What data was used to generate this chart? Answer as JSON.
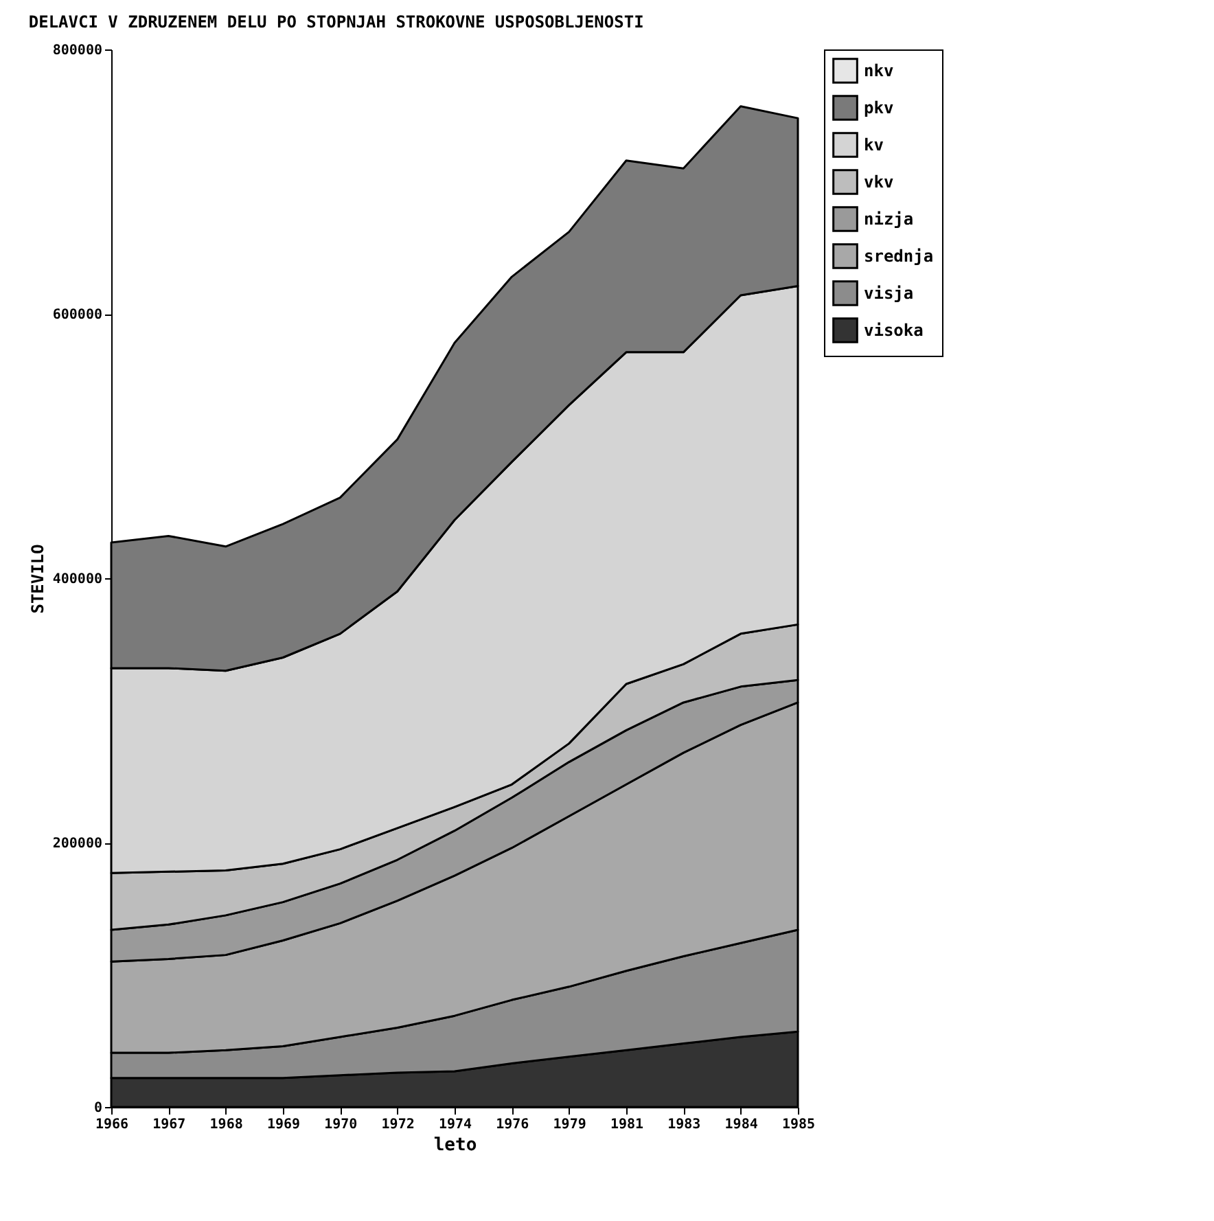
{
  "chart_data": {
    "type": "area",
    "stacked": true,
    "title": "DELAVCI V ZDRUZENEM DELU PO STOPNJAH STROKOVNE USPOSOBLJENOSTI",
    "xlabel": "leto",
    "ylabel": "STEVILO",
    "categories": [
      "1966",
      "1967",
      "1968",
      "1969",
      "1970",
      "1972",
      "1974",
      "1976",
      "1979",
      "1981",
      "1983",
      "1984",
      "1985"
    ],
    "series": [
      {
        "name": "visoka",
        "color": "#333333",
        "values": [
          22000,
          22000,
          22000,
          22000,
          24000,
          26000,
          27000,
          33000,
          38000,
          43000,
          48000,
          53000,
          57000
        ]
      },
      {
        "name": "visja",
        "color": "#8c8c8c",
        "values": [
          19000,
          19000,
          21000,
          24000,
          29000,
          34000,
          42000,
          48000,
          53000,
          60000,
          66000,
          71000,
          77000
        ]
      },
      {
        "name": "srednja",
        "color": "#a8a8a8",
        "values": [
          69000,
          71000,
          72000,
          80000,
          86000,
          96000,
          106000,
          115000,
          129000,
          141000,
          154000,
          165000,
          172000
        ]
      },
      {
        "name": "nizja",
        "color": "#9a9a9a",
        "values": [
          24000,
          26000,
          30000,
          29000,
          30000,
          31000,
          34000,
          38000,
          41000,
          41000,
          38000,
          29000,
          17000
        ]
      },
      {
        "name": "vkv",
        "color": "#bdbdbd",
        "values": [
          43000,
          40000,
          34000,
          29000,
          26000,
          24000,
          18000,
          10000,
          14000,
          35000,
          29000,
          40000,
          42000
        ]
      },
      {
        "name": "kv",
        "color": "#d4d4d4",
        "values": [
          155000,
          154000,
          151000,
          156000,
          163000,
          179000,
          217000,
          244000,
          256000,
          251000,
          236000,
          256000,
          256000
        ]
      },
      {
        "name": "pkv",
        "color": "#7a7a7a",
        "values": [
          95000,
          100000,
          94000,
          101000,
          103000,
          115000,
          134000,
          140000,
          131000,
          145000,
          139000,
          143000,
          127000
        ]
      },
      {
        "name": "nkv",
        "color": "#e6e6e6",
        "values": [
          null,
          null,
          null,
          null,
          null,
          null,
          null,
          null,
          null,
          null,
          null,
          null,
          null
        ]
      }
    ],
    "ylim": [
      0,
      800000
    ],
    "yticks": [
      0,
      200000,
      400000,
      600000,
      800000
    ],
    "legend": "right",
    "grid": false
  }
}
